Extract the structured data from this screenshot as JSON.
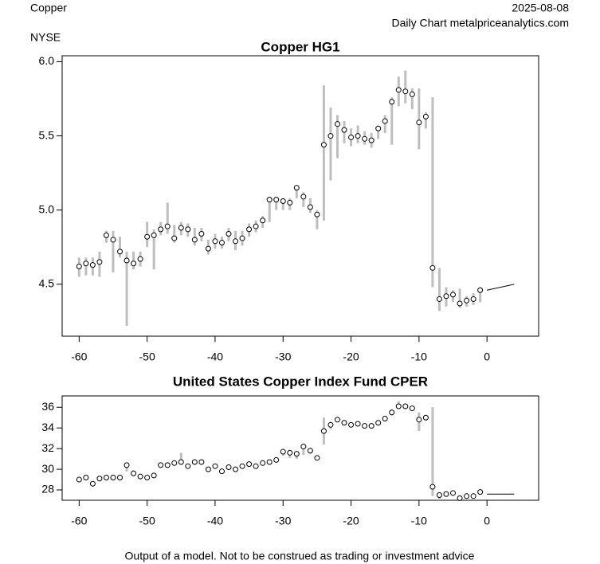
{
  "header": {
    "instrument": "Copper",
    "exchange": "NYSE",
    "date": "2025-08-08",
    "source": "Daily Chart metalpriceanalytics.com"
  },
  "footer": "Output of a model. Not to be construed as trading or investment advice",
  "chart_data": [
    {
      "type": "hilo",
      "title": "Copper HG1",
      "bar_color": "#bebebe",
      "point_color": "#ffffff",
      "x": [
        -60,
        -59,
        -58,
        -57,
        -56,
        -55,
        -54,
        -53,
        -52,
        -51,
        -50,
        -49,
        -48,
        -47,
        -46,
        -45,
        -44,
        -43,
        -42,
        -41,
        -40,
        -39,
        -38,
        -37,
        -36,
        -35,
        -34,
        -33,
        -32,
        -31,
        -30,
        -29,
        -28,
        -27,
        -26,
        -25,
        -24,
        -23,
        -22,
        -21,
        -20,
        -19,
        -18,
        -17,
        -16,
        -15,
        -14,
        -13,
        -12,
        -11,
        -10,
        -9,
        -8,
        -7,
        -6,
        -5,
        -4,
        -3,
        -2,
        -1
      ],
      "values": [
        4.62,
        4.64,
        4.63,
        4.65,
        4.83,
        4.8,
        4.72,
        4.66,
        4.64,
        4.67,
        4.82,
        4.83,
        4.87,
        4.89,
        4.81,
        4.88,
        4.87,
        4.8,
        4.84,
        4.74,
        4.79,
        4.78,
        4.84,
        4.79,
        4.81,
        4.87,
        4.89,
        4.93,
        5.07,
        5.07,
        5.06,
        5.05,
        5.15,
        5.09,
        5.02,
        4.97,
        5.44,
        5.5,
        5.58,
        5.54,
        5.49,
        5.5,
        5.48,
        5.47,
        5.55,
        5.6,
        5.73,
        5.81,
        5.8,
        5.78,
        5.59,
        5.63,
        4.61,
        4.4,
        4.42,
        4.43,
        4.37,
        4.39,
        4.4,
        4.46
      ],
      "high": [
        4.68,
        4.68,
        4.68,
        4.72,
        4.86,
        4.86,
        4.82,
        4.72,
        4.72,
        4.72,
        4.92,
        4.87,
        4.92,
        5.05,
        4.9,
        4.92,
        4.91,
        4.88,
        4.88,
        4.8,
        4.84,
        4.82,
        4.88,
        4.86,
        4.86,
        4.91,
        4.93,
        4.96,
        5.09,
        5.09,
        5.08,
        5.08,
        5.16,
        5.12,
        5.08,
        5.0,
        5.84,
        5.69,
        5.64,
        5.6,
        5.55,
        5.57,
        5.53,
        5.52,
        5.57,
        5.64,
        5.76,
        5.9,
        5.94,
        5.82,
        5.82,
        5.66,
        5.76,
        4.61,
        4.48,
        4.46,
        4.47,
        4.42,
        4.44,
        4.48
      ],
      "low": [
        4.55,
        4.56,
        4.56,
        4.55,
        4.78,
        4.58,
        4.68,
        4.22,
        4.6,
        4.62,
        4.75,
        4.6,
        4.83,
        4.84,
        4.78,
        4.83,
        4.82,
        4.76,
        4.79,
        4.7,
        4.74,
        4.74,
        4.79,
        4.73,
        4.76,
        4.82,
        4.85,
        4.88,
        4.92,
        5.0,
        5.0,
        5.0,
        5.08,
        5.02,
        4.98,
        4.87,
        4.93,
        5.2,
        5.35,
        5.45,
        5.43,
        5.45,
        5.44,
        5.42,
        5.48,
        5.52,
        5.44,
        5.7,
        5.72,
        5.68,
        5.41,
        5.55,
        4.48,
        4.32,
        4.35,
        4.38,
        4.34,
        4.35,
        4.36,
        4.38
      ],
      "forecast": {
        "x": [
          0,
          4
        ],
        "values": [
          4.46,
          4.5
        ],
        "color": "#000000"
      },
      "xlim": [
        -62.5,
        7.6
      ],
      "ylim": [
        4.15,
        6.04
      ],
      "xticks": [
        -60,
        -50,
        -40,
        -30,
        -20,
        -10,
        0
      ],
      "yticks": [
        4.5,
        {
          "value": 5.0,
          "label": "5.0"
        },
        5.5,
        {
          "value": 6.0,
          "label": "6.0"
        }
      ]
    },
    {
      "type": "hilo",
      "title": "United States Copper Index Fund CPER",
      "bar_color": "#bebebe",
      "point_color": "#ffffff",
      "x": [
        -60,
        -59,
        -58,
        -57,
        -56,
        -55,
        -54,
        -53,
        -52,
        -51,
        -50,
        -49,
        -48,
        -47,
        -46,
        -45,
        -44,
        -43,
        -42,
        -41,
        -40,
        -39,
        -38,
        -37,
        -36,
        -35,
        -34,
        -33,
        -32,
        -31,
        -30,
        -29,
        -28,
        -27,
        -26,
        -25,
        -24,
        -23,
        -22,
        -21,
        -20,
        -19,
        -18,
        -17,
        -16,
        -15,
        -14,
        -13,
        -12,
        -11,
        -10,
        -9,
        -8,
        -7,
        -6,
        -5,
        -4,
        -3,
        -2,
        -1
      ],
      "values": [
        29.0,
        29.2,
        28.6,
        29.1,
        29.2,
        29.2,
        29.2,
        30.4,
        29.6,
        29.3,
        29.2,
        29.4,
        30.4,
        30.4,
        30.6,
        30.7,
        30.3,
        30.7,
        30.7,
        30.0,
        30.3,
        29.8,
        30.2,
        30.0,
        30.3,
        30.5,
        30.3,
        30.6,
        30.7,
        30.9,
        31.7,
        31.6,
        31.5,
        32.2,
        31.8,
        31.1,
        33.7,
        34.3,
        34.8,
        34.5,
        34.3,
        34.4,
        34.2,
        34.2,
        34.5,
        34.9,
        35.5,
        36.1,
        36.1,
        35.9,
        34.8,
        35.0,
        28.3,
        27.5,
        27.6,
        27.7,
        27.2,
        27.4,
        27.4,
        27.8
      ],
      "high": [
        29.1,
        29.3,
        28.8,
        29.2,
        29.3,
        29.3,
        29.3,
        30.6,
        29.9,
        29.4,
        29.3,
        29.5,
        30.5,
        30.5,
        30.7,
        31.6,
        30.5,
        30.8,
        30.8,
        30.1,
        30.4,
        29.9,
        30.3,
        30.1,
        30.4,
        30.6,
        30.4,
        30.7,
        30.8,
        31.0,
        31.8,
        31.7,
        31.7,
        32.3,
        31.9,
        31.3,
        35.0,
        34.6,
        34.9,
        34.6,
        34.4,
        34.5,
        34.3,
        34.3,
        34.6,
        35.0,
        35.8,
        36.6,
        36.2,
        36.0,
        35.5,
        35.2,
        36.0,
        27.8,
        27.7,
        27.8,
        27.3,
        27.5,
        27.5,
        27.9
      ],
      "low": [
        28.9,
        29.1,
        28.5,
        29.0,
        29.1,
        29.1,
        29.1,
        29.8,
        29.4,
        29.2,
        29.1,
        29.3,
        30.3,
        30.3,
        30.5,
        30.5,
        30.1,
        30.6,
        30.6,
        29.9,
        30.2,
        29.7,
        30.1,
        29.9,
        30.2,
        30.4,
        30.2,
        30.5,
        30.6,
        30.8,
        31.3,
        31.1,
        31.0,
        31.4,
        31.5,
        30.9,
        32.4,
        33.9,
        34.7,
        34.4,
        34.2,
        34.3,
        34.1,
        34.1,
        34.4,
        34.8,
        35.2,
        36.0,
        36.0,
        35.8,
        33.7,
        34.7,
        27.4,
        27.0,
        27.5,
        27.6,
        27.1,
        27.3,
        27.3,
        27.7
      ],
      "forecast": {
        "x": [
          0,
          4
        ],
        "values": [
          27.6,
          27.6
        ],
        "color": "#000000"
      },
      "xlim": [
        -62.5,
        7.6
      ],
      "ylim": [
        27.0,
        37.1
      ],
      "xticks": [
        -60,
        -50,
        -40,
        -30,
        -20,
        -10,
        0
      ],
      "yticks": [
        28,
        30,
        32,
        34,
        36
      ]
    }
  ]
}
